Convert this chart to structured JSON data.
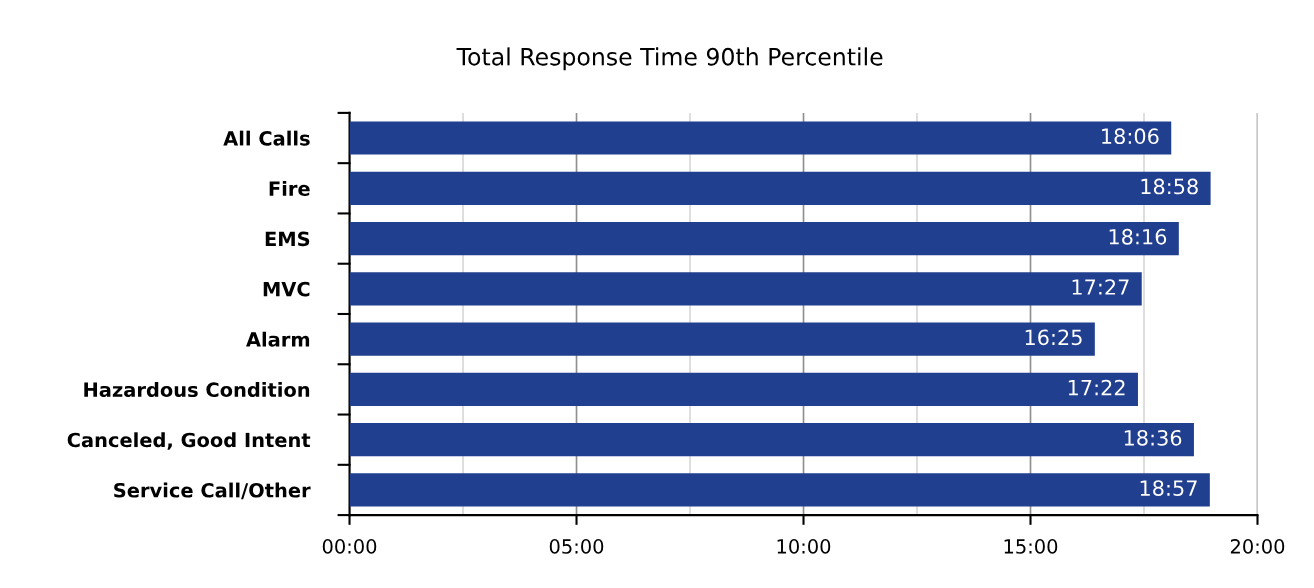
{
  "chart_data": {
    "type": "bar",
    "orientation": "horizontal",
    "title": "Total Response Time 90th Percentile",
    "categories": [
      "All Calls",
      "Fire",
      "EMS",
      "MVC",
      "Alarm",
      "Hazardous Condition",
      "Canceled, Good Intent",
      "Service Call/Other"
    ],
    "values": [
      18.1,
      18.967,
      18.267,
      17.45,
      16.417,
      17.367,
      18.6,
      18.95
    ],
    "value_labels": [
      "18:06",
      "18:58",
      "18:16",
      "17:27",
      "16:25",
      "17:22",
      "18:36",
      "18:57"
    ],
    "color": "#213f8f",
    "xlim": [
      0,
      20
    ],
    "xticks": [
      {
        "value": 0,
        "label": "00:00"
      },
      {
        "value": 2.5,
        "label": null
      },
      {
        "value": 5,
        "label": "05:00"
      },
      {
        "value": 7.5,
        "label": null
      },
      {
        "value": 10,
        "label": "10:00"
      },
      {
        "value": 12.5,
        "label": null
      },
      {
        "value": 15,
        "label": "15:00"
      },
      {
        "value": 17.5,
        "label": null
      },
      {
        "value": 20,
        "label": "20:00"
      }
    ],
    "grid": "x"
  }
}
